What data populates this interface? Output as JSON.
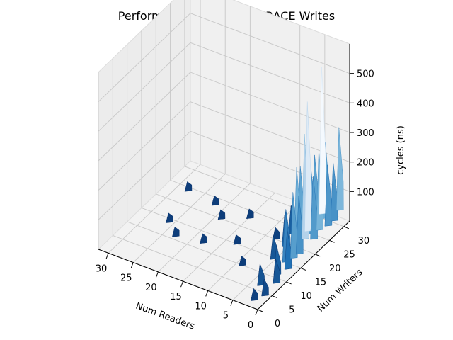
{
  "chart_data": {
    "type": "surface3d",
    "title": "Performance mountain of RACE Writes",
    "xlabel": "Num Readers",
    "ylabel": "Num Writers",
    "zlabel": "cycles (ns)",
    "xlim": [
      0,
      32
    ],
    "ylim": [
      0,
      32
    ],
    "zlim": [
      0,
      600
    ],
    "x_ticks": [
      0,
      5,
      10,
      15,
      20,
      25,
      30
    ],
    "y_ticks": [
      0,
      5,
      10,
      15,
      20,
      25,
      30
    ],
    "z_ticks": [
      100,
      200,
      300,
      400,
      500
    ],
    "colormap": "Blues",
    "grid": true,
    "points": [
      {
        "x": 2,
        "y": 2,
        "z": 40
      },
      {
        "x": 1,
        "y": 4,
        "z": 60
      },
      {
        "x": 3,
        "y": 6,
        "z": 80
      },
      {
        "x": 1,
        "y": 8,
        "z": 90
      },
      {
        "x": 2,
        "y": 10,
        "z": 110
      },
      {
        "x": 1,
        "y": 12,
        "z": 150
      },
      {
        "x": 2,
        "y": 13,
        "z": 200
      },
      {
        "x": 1,
        "y": 14,
        "z": 260
      },
      {
        "x": 3,
        "y": 15,
        "z": 180
      },
      {
        "x": 1,
        "y": 16,
        "z": 230
      },
      {
        "x": 2,
        "y": 17,
        "z": 310
      },
      {
        "x": 1,
        "y": 18,
        "z": 420
      },
      {
        "x": 1,
        "y": 19,
        "z": 520
      },
      {
        "x": 3,
        "y": 20,
        "z": 280
      },
      {
        "x": 1,
        "y": 21,
        "z": 250
      },
      {
        "x": 2,
        "y": 22,
        "z": 260
      },
      {
        "x": 1,
        "y": 23,
        "z": 320
      },
      {
        "x": 1,
        "y": 24,
        "z": 590
      },
      {
        "x": 3,
        "y": 25,
        "z": 270
      },
      {
        "x": 1,
        "y": 26,
        "z": 240
      },
      {
        "x": 2,
        "y": 27,
        "z": 300
      },
      {
        "x": 1,
        "y": 28,
        "z": 230
      },
      {
        "x": 1,
        "y": 30,
        "z": 330
      },
      {
        "x": 5,
        "y": 14,
        "z": 90
      },
      {
        "x": 5,
        "y": 18,
        "z": 120
      },
      {
        "x": 6,
        "y": 22,
        "z": 110
      },
      {
        "x": 5,
        "y": 26,
        "z": 100
      },
      {
        "x": 4,
        "y": 28,
        "z": 90
      },
      {
        "x": 8,
        "y": 20,
        "z": 40
      },
      {
        "x": 9,
        "y": 10,
        "z": 30
      },
      {
        "x": 13,
        "y": 15,
        "z": 30
      },
      {
        "x": 15,
        "y": 23,
        "z": 30
      },
      {
        "x": 18,
        "y": 12,
        "z": 30
      },
      {
        "x": 19,
        "y": 20,
        "z": 30
      },
      {
        "x": 23,
        "y": 11,
        "z": 30
      },
      {
        "x": 22,
        "y": 23,
        "z": 30
      },
      {
        "x": 26,
        "y": 14,
        "z": 30
      },
      {
        "x": 28,
        "y": 24,
        "z": 30
      }
    ]
  }
}
